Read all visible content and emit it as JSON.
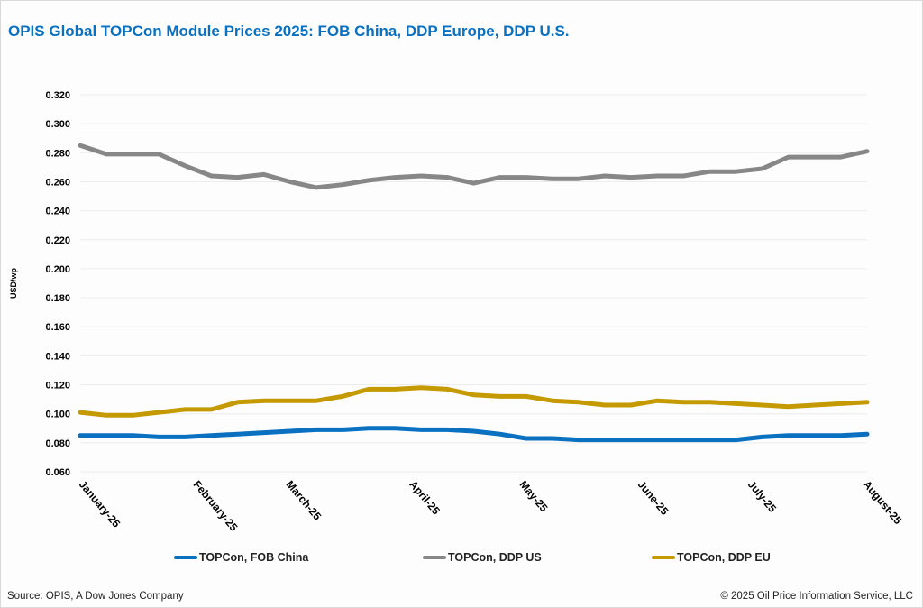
{
  "title": "OPIS Global TOPCon Module Prices 2025: FOB China, DDP Europe, DDP U.S.",
  "footer": {
    "source": "Source: OPIS, A Dow Jones Company",
    "copyright": "© 2025 Oil Price Information Service, LLC"
  },
  "chart_data": {
    "type": "line",
    "title": "OPIS Global TOPCon Module Prices 2025: FOB China, DDP Europe, DDP U.S.",
    "ylabel": "USD/wp",
    "xlabel": "",
    "ylim": [
      0.06,
      0.32
    ],
    "yticks": [
      "0.060",
      "0.080",
      "0.100",
      "0.120",
      "0.140",
      "0.160",
      "0.180",
      "0.200",
      "0.220",
      "0.240",
      "0.260",
      "0.280",
      "0.300",
      "0.320"
    ],
    "xticks": [
      "January-25",
      "February-25",
      "March-25",
      "April-25",
      "May-25",
      "June-25",
      "July-25",
      "August-25"
    ],
    "grid": true,
    "legend_position": "bottom",
    "series": [
      {
        "name": "TOPCon, FOB China",
        "color": "#0a70c0",
        "values": [
          0.085,
          0.085,
          0.085,
          0.084,
          0.084,
          0.085,
          0.086,
          0.087,
          0.088,
          0.089,
          0.089,
          0.09,
          0.09,
          0.089,
          0.089,
          0.088,
          0.086,
          0.083,
          0.083,
          0.082,
          0.082,
          0.082,
          0.082,
          0.082,
          0.082,
          0.082,
          0.084,
          0.085,
          0.085,
          0.085,
          0.086
        ]
      },
      {
        "name": "TOPCon, DDP US",
        "color": "#878787",
        "values": [
          0.285,
          0.279,
          0.279,
          0.279,
          0.271,
          0.264,
          0.263,
          0.265,
          0.26,
          0.256,
          0.258,
          0.261,
          0.263,
          0.264,
          0.263,
          0.259,
          0.263,
          0.263,
          0.262,
          0.262,
          0.264,
          0.263,
          0.264,
          0.264,
          0.267,
          0.267,
          0.269,
          0.277,
          0.277,
          0.277,
          0.281
        ]
      },
      {
        "name": "TOPCon, DDP EU",
        "color": "#c49a00",
        "values": [
          0.101,
          0.099,
          0.099,
          0.101,
          0.103,
          0.103,
          0.108,
          0.109,
          0.109,
          0.109,
          0.112,
          0.117,
          0.117,
          0.118,
          0.117,
          0.113,
          0.112,
          0.112,
          0.109,
          0.108,
          0.106,
          0.106,
          0.109,
          0.108,
          0.108,
          0.107,
          0.106,
          0.105,
          0.106,
          0.107,
          0.108
        ]
      }
    ]
  }
}
